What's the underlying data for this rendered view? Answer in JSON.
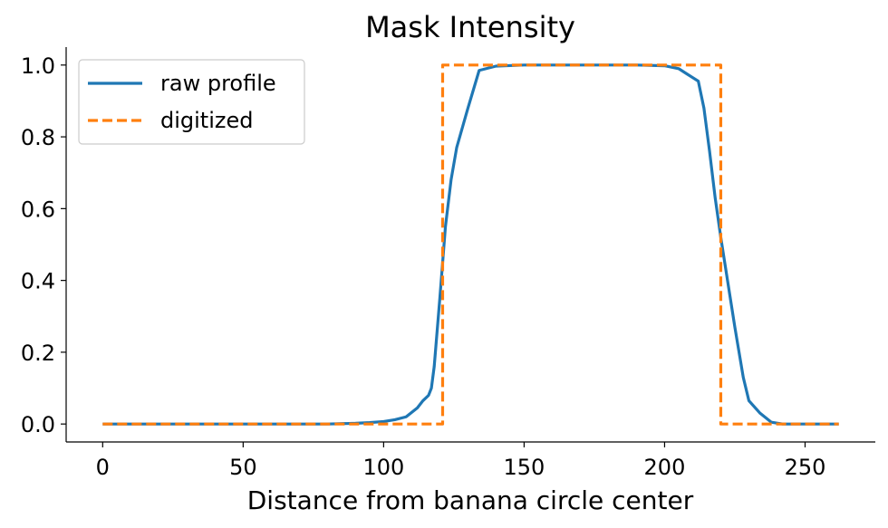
{
  "chart_data": {
    "type": "line",
    "title": "Mask Intensity",
    "xlabel": "Distance from banana circle center",
    "ylabel": "",
    "xlim": [
      -13,
      275
    ],
    "ylim": [
      -0.05,
      1.05
    ],
    "xticks": [
      0,
      50,
      100,
      150,
      200,
      250
    ],
    "yticks": [
      0.0,
      0.2,
      0.4,
      0.6,
      0.8,
      1.0
    ],
    "grid": false,
    "legend_position": "top-left",
    "series": [
      {
        "name": "raw profile",
        "color": "#1f77b4",
        "style": "solid",
        "x": [
          0,
          20,
          40,
          60,
          80,
          90,
          95,
          100,
          104,
          108,
          112,
          114,
          116,
          117,
          118,
          120,
          122,
          124,
          126,
          130,
          134,
          140,
          150,
          160,
          170,
          180,
          190,
          200,
          205,
          208,
          212,
          214,
          216,
          218,
          220,
          222,
          225,
          228,
          230,
          234,
          238,
          242,
          250,
          262
        ],
        "y": [
          0.0,
          0.0,
          0.0,
          0.0,
          0.0,
          0.002,
          0.004,
          0.007,
          0.012,
          0.02,
          0.045,
          0.065,
          0.08,
          0.1,
          0.16,
          0.35,
          0.55,
          0.68,
          0.77,
          0.88,
          0.985,
          0.997,
          1.0,
          1.0,
          1.0,
          1.0,
          1.0,
          0.998,
          0.99,
          0.975,
          0.955,
          0.88,
          0.76,
          0.63,
          0.52,
          0.42,
          0.27,
          0.13,
          0.065,
          0.03,
          0.005,
          0.0,
          0.0,
          0.0
        ]
      },
      {
        "name": "digitized",
        "color": "#ff7f0e",
        "style": "dashed",
        "x": [
          0,
          121,
          121,
          220,
          220,
          262
        ],
        "y": [
          0,
          0,
          1,
          1,
          0,
          0
        ]
      }
    ]
  }
}
